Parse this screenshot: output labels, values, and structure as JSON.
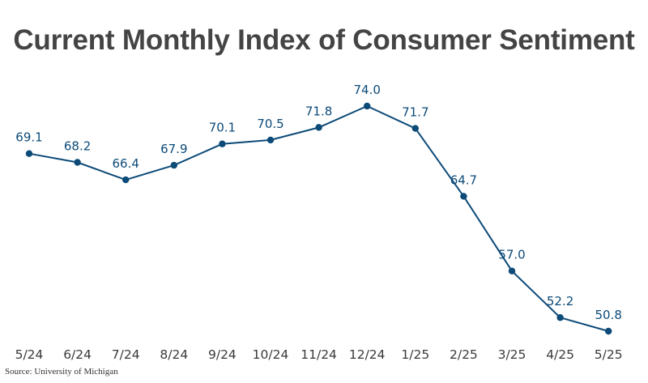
{
  "chart_data": {
    "type": "line",
    "title": "Current Monthly Index of Consumer Sentiment",
    "categories": [
      "5/24",
      "6/24",
      "7/24",
      "8/24",
      "9/24",
      "10/24",
      "11/24",
      "12/24",
      "1/25",
      "2/25",
      "3/25",
      "4/25",
      "5/25"
    ],
    "series": [
      {
        "name": "Current Monthly Index of Consumer Sentiment",
        "values": [
          69.1,
          68.2,
          66.4,
          67.9,
          70.1,
          70.5,
          71.8,
          74.0,
          71.7,
          64.7,
          57.0,
          52.2,
          50.8
        ]
      }
    ],
    "value_labels": [
      "69.1",
      "68.2",
      "66.4",
      "67.9",
      "70.1",
      "70.5",
      "71.8",
      "74.0",
      "71.7",
      "64.7",
      "57.0",
      "52.2",
      "50.8"
    ],
    "xlabel": "",
    "ylabel": "",
    "grid": false,
    "source": "Source: University of Michigan"
  },
  "colors": {
    "line": "#0c4a78",
    "title": "#444444",
    "ticks": "#3a3a3a"
  }
}
